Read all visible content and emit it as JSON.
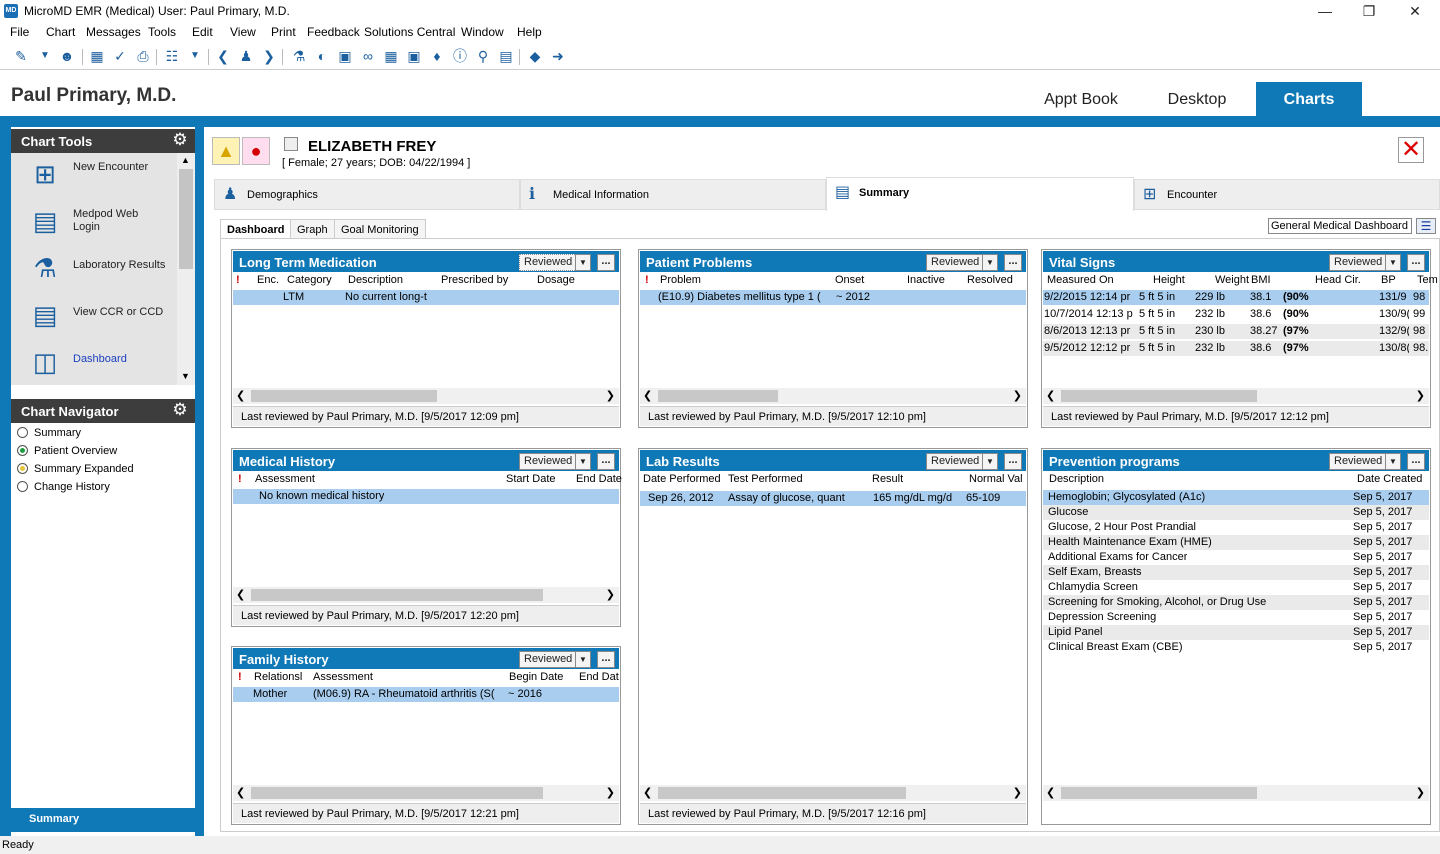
{
  "titlebar": {
    "app_title": "MicroMD EMR (Medical)  User: Paul Primary, M.D.",
    "logo": "MD"
  },
  "menu": [
    "File",
    "Chart",
    "Messages",
    "Tools",
    "Edit",
    "View",
    "Print",
    "Feedback",
    "Solutions Central",
    "Window",
    "Help"
  ],
  "header": {
    "user": "Paul Primary, M.D.",
    "tabs": [
      "Appt Book",
      "Desktop",
      "Charts"
    ]
  },
  "chart_tools": {
    "title": "Chart Tools",
    "items": [
      {
        "label": "New Encounter",
        "icon": "new-encounter-icon"
      },
      {
        "label": "Medpod Web\nLogin",
        "icon": "medpod-icon"
      },
      {
        "label": "Laboratory Results",
        "icon": "flask-icon"
      },
      {
        "label": "View CCR or CCD",
        "icon": "document-icon"
      },
      {
        "label": "Dashboard",
        "icon": "dashboard-icon"
      }
    ]
  },
  "chart_navigator": {
    "title": "Chart Navigator",
    "items": [
      "Summary",
      "Patient Overview",
      "Summary Expanded",
      "Change History"
    ],
    "footer": "Summary"
  },
  "patient": {
    "name": "ELIZABETH  FREY",
    "details": "[ Female; 27 years; DOB: 04/22/1994 ]"
  },
  "patient_tabs": [
    "Demographics",
    "Medical Information",
    "Summary",
    "Encounter"
  ],
  "sub_tabs": [
    "Dashboard",
    "Graph",
    "Goal Monitoring"
  ],
  "dashboard_select": "General Medical Dashboard",
  "reviewed_label": "Reviewed",
  "more_label": "...",
  "panels": {
    "ltm": {
      "title": "Long Term Medication",
      "cols": [
        "!",
        "Enc.",
        "Category",
        "Description",
        "Prescribed by",
        "Dosage"
      ],
      "rows": [
        [
          "",
          "",
          "LTM",
          "No current long-t",
          "",
          ""
        ]
      ],
      "footer": "Last reviewed by Paul Primary, M.D. [9/5/2017 12:09 pm]"
    },
    "problems": {
      "title": "Patient Problems",
      "cols": [
        "!",
        "Problem",
        "Onset",
        "Inactive",
        "Resolved"
      ],
      "rows": [
        [
          "",
          "(E10.9)  Diabetes mellitus type 1 (",
          "~ 2012",
          "",
          ""
        ]
      ],
      "footer": "Last reviewed by Paul Primary, M.D. [9/5/2017 12:10 pm]"
    },
    "vitals": {
      "title": "Vital Signs",
      "cols": [
        "Measured On",
        "Height",
        "Weight",
        "BMI",
        "Head Cir.",
        "BP",
        "Tem"
      ],
      "rows": [
        [
          "9/2/2015 12:14 pr",
          "5 ft 5 in",
          "229 lb",
          "38.1",
          "(90%",
          "",
          "131/9",
          "98"
        ],
        [
          "10/7/2014 12:13 p",
          "5 ft 5 in",
          "232 lb",
          "38.6",
          "(90%",
          "",
          "130/9(",
          "99"
        ],
        [
          "8/6/2013 12:13 pr",
          "5 ft 5 in",
          "230 lb",
          "38.27",
          "(97%",
          "",
          "132/9(",
          "98"
        ],
        [
          "9/5/2012 12:12 pr",
          "5 ft 5 in",
          "232 lb",
          "38.6",
          "(97%",
          "",
          "130/8(",
          "98."
        ]
      ],
      "footer": "Last reviewed by Paul Primary, M.D. [9/5/2017 12:12 pm]"
    },
    "history": {
      "title": "Medical History",
      "cols": [
        "!",
        "Assessment",
        "Start Date",
        "End Date"
      ],
      "rows": [
        [
          "",
          "No known medical history",
          "",
          ""
        ]
      ],
      "footer": "Last reviewed by Paul Primary, M.D. [9/5/2017 12:20 pm]"
    },
    "labs": {
      "title": "Lab Results",
      "cols": [
        "Date Performed",
        "Test Performed",
        "Result",
        "Normal Val"
      ],
      "rows": [
        [
          "Sep 26, 2012",
          "Assay of glucose, quant",
          "165 mg/dL  mg/d",
          "65-109"
        ]
      ],
      "footer": "Last reviewed by Paul Primary, M.D. [9/5/2017 12:16 pm]"
    },
    "prevention": {
      "title": "Prevention programs",
      "cols": [
        "Description",
        "Date Created"
      ],
      "rows": [
        [
          "Hemoglobin; Glycosylated (A1c)",
          "Sep 5, 2017"
        ],
        [
          "Glucose",
          "Sep 5, 2017"
        ],
        [
          "Glucose, 2 Hour Post Prandial",
          "Sep 5, 2017"
        ],
        [
          "Health Maintenance Exam (HME)",
          "Sep 5, 2017"
        ],
        [
          "Additional Exams for Cancer",
          "Sep 5, 2017"
        ],
        [
          "Self Exam, Breasts",
          "Sep 5, 2017"
        ],
        [
          "Chlamydia Screen",
          "Sep 5, 2017"
        ],
        [
          "Screening for Smoking, Alcohol, or Drug Use",
          "Sep 5, 2017"
        ],
        [
          "Depression Screening",
          "Sep 5, 2017"
        ],
        [
          "Lipid Panel",
          "Sep 5, 2017"
        ],
        [
          "Clinical Breast Exam (CBE)",
          "Sep 5, 2017"
        ]
      ]
    },
    "family": {
      "title": "Family History",
      "cols": [
        "!",
        "Relationsl",
        "Assessment",
        "Begin Date",
        "End Dat"
      ],
      "rows": [
        [
          "",
          "Mother",
          "(M06.9)  RA - Rheumatoid arthritis (S(",
          "~ 2016",
          ""
        ]
      ],
      "footer": "Last reviewed by Paul Primary, M.D. [9/5/2017 12:21 pm]"
    }
  },
  "status": "Ready",
  "colors": {
    "accent": "#0f78b6",
    "highlight_row": "#a8cdef",
    "section_header": "#3d3d3d"
  }
}
